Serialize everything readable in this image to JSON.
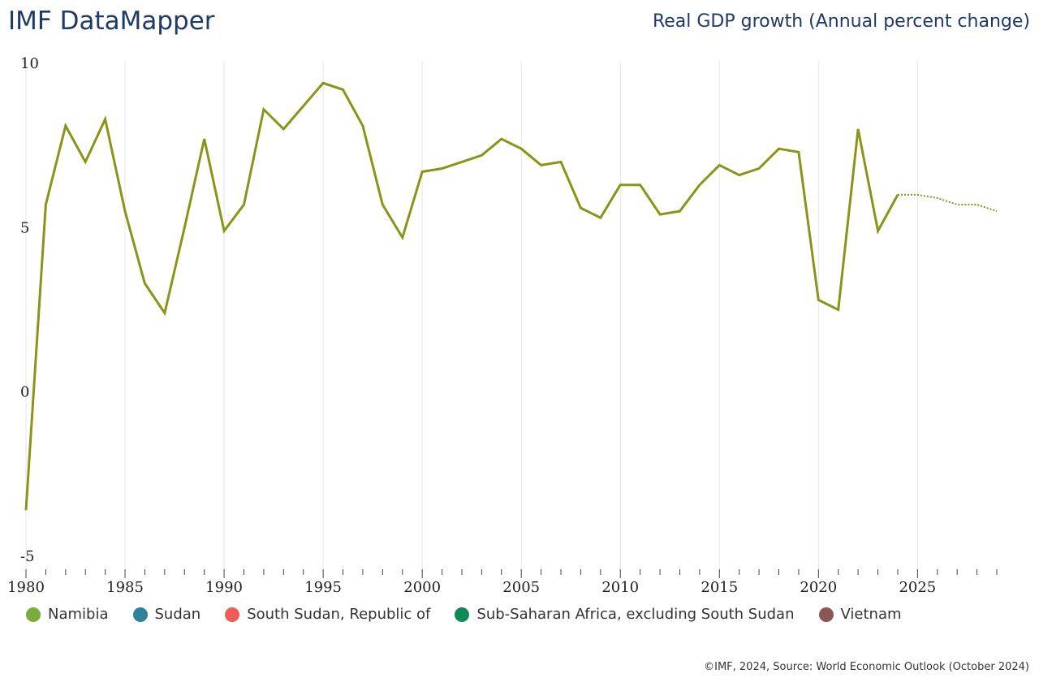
{
  "header": {
    "brand": "IMF DataMapper",
    "indicator": "Real GDP growth (Annual percent change)"
  },
  "legend": [
    {
      "label": "Namibia",
      "color": "#7aab3b"
    },
    {
      "label": "Sudan",
      "color": "#2f8299"
    },
    {
      "label": "South Sudan, Republic of",
      "color": "#f05a59"
    },
    {
      "label": "Sub-Saharan Africa, excluding South Sudan",
      "color": "#0f8a56"
    },
    {
      "label": "Vietnam",
      "color": "#8b5656"
    }
  ],
  "footer": "©IMF, 2024, Source: World Economic Outlook (October 2024)",
  "chart_data": {
    "type": "line",
    "title": "Real GDP growth (Annual percent change)",
    "xlabel": "",
    "ylabel": "",
    "xlim": [
      1980,
      2029
    ],
    "ylim": [
      -5,
      10
    ],
    "yticks": [
      -5,
      0,
      5,
      10
    ],
    "xticks": [
      1980,
      1985,
      1990,
      1995,
      2000,
      2005,
      2010,
      2015,
      2020,
      2025
    ],
    "grid": "vertical",
    "series": [
      {
        "name": "Namibia",
        "color": "#8a9418",
        "forecast_from": 2024,
        "x": [
          1980,
          1981,
          1982,
          1983,
          1984,
          1985,
          1986,
          1987,
          1988,
          1989,
          1990,
          1991,
          1992,
          1993,
          1994,
          1995,
          1996,
          1997,
          1998,
          1999,
          2000,
          2001,
          2002,
          2003,
          2004,
          2005,
          2006,
          2007,
          2008,
          2009,
          2010,
          2011,
          2012,
          2013,
          2014,
          2015,
          2016,
          2017,
          2018,
          2019,
          2020,
          2021,
          2022,
          2023,
          2024,
          2025,
          2026,
          2027,
          2028,
          2029
        ],
        "values": [
          -3.6,
          5.7,
          8.1,
          7.0,
          8.3,
          5.5,
          3.3,
          2.4,
          5.0,
          7.7,
          4.9,
          5.7,
          8.6,
          8.0,
          8.7,
          9.4,
          9.2,
          8.1,
          5.7,
          4.7,
          6.7,
          6.8,
          7.0,
          7.2,
          7.7,
          7.4,
          6.9,
          7.0,
          5.6,
          5.3,
          6.3,
          6.3,
          5.4,
          5.5,
          6.3,
          6.9,
          6.6,
          6.8,
          7.4,
          7.3,
          2.8,
          2.5,
          8.0,
          4.9,
          6.0,
          6.0,
          5.9,
          5.7,
          5.7,
          5.5
        ]
      }
    ]
  }
}
